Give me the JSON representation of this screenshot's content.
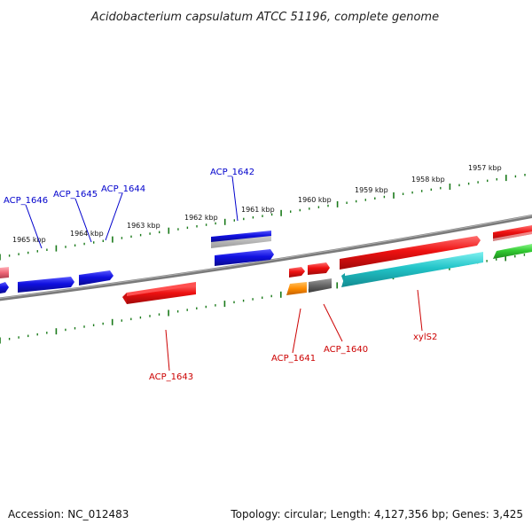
{
  "title": "Acidobacterium capsulatum ATCC 51196, complete genome",
  "footer": {
    "accession": "Accession: NC_012483",
    "summary": "Topology: circular; Length: 4,127,356 bp; Genes: 3,425"
  },
  "scale_labels": [
    "1957 kbp",
    "1958 kbp",
    "1959 kbp",
    "1960 kbp",
    "1961 kbp",
    "1962 kbp",
    "1963 kbp",
    "1964 kbp",
    "1965 kbp"
  ],
  "gene_labels": {
    "acp_1646": "ACP_1646",
    "acp_1645": "ACP_1645",
    "acp_1644": "ACP_1644",
    "acp_1642": "ACP_1642",
    "acp_1643": "ACP_1643",
    "acp_1641": "ACP_1641",
    "acp_1640": "ACP_1640",
    "xyls2": "xylS2"
  },
  "colors": {
    "backbone": "#808080",
    "forward_strand_label": "#0000cc",
    "reverse_strand_label": "#cc0000",
    "tick": "#1a7a1a",
    "gene_blue": "#1010e0",
    "gene_red": "#ee1111",
    "gene_cyan": "#22c4c8",
    "gene_green": "#33cc33",
    "gene_orange": "#ff8c00",
    "gene_gray": "#666666",
    "gene_pink": "#ee6677"
  }
}
